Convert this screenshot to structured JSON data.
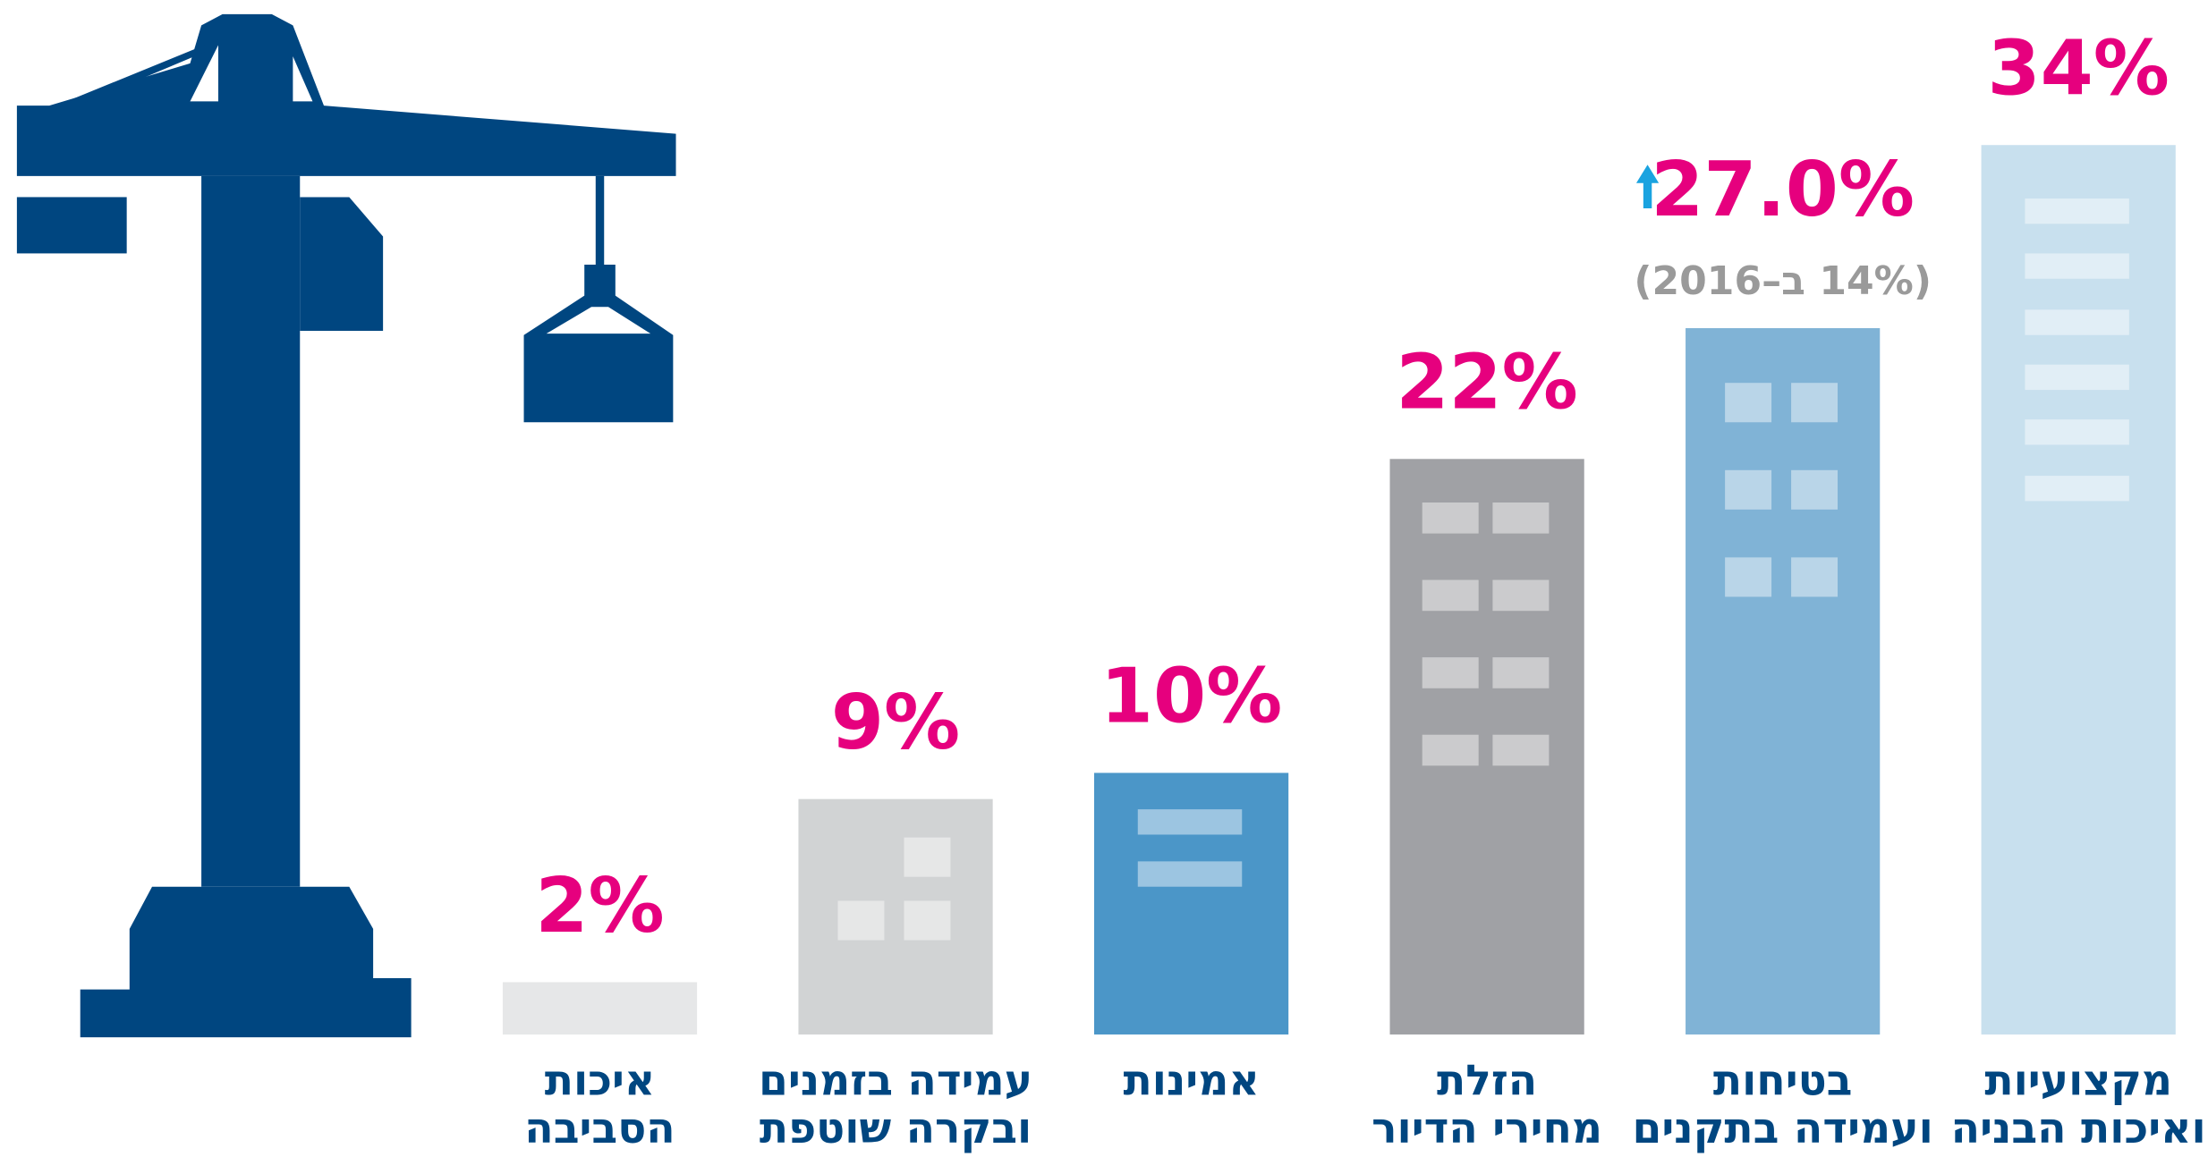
{
  "chart_data": {
    "type": "bar",
    "categories": [
      [
        "איכות",
        "הסביבה"
      ],
      [
        "עמידה בזמנים",
        "ובקרה שוטפת"
      ],
      [
        "אמינות"
      ],
      [
        "הזלת",
        "מחירי הדיור"
      ],
      [
        "בטיחות",
        "ועמידה בתקנים"
      ],
      [
        "מקצועיות",
        "ואיכות הבניה"
      ]
    ],
    "values": [
      2,
      9,
      10,
      22,
      27,
      34
    ],
    "value_labels": [
      "2%",
      "9%",
      "10%",
      "22%",
      "27.0%",
      "34%"
    ],
    "colors": [
      "#e6e7e8",
      "#d1d3d4",
      "#4b96c8",
      "#a0a1a5",
      "#80b3d6",
      "#c8e0ee"
    ],
    "annotations": [
      {
        "category": 4,
        "text": "(14% ב–2016)"
      }
    ]
  }
}
